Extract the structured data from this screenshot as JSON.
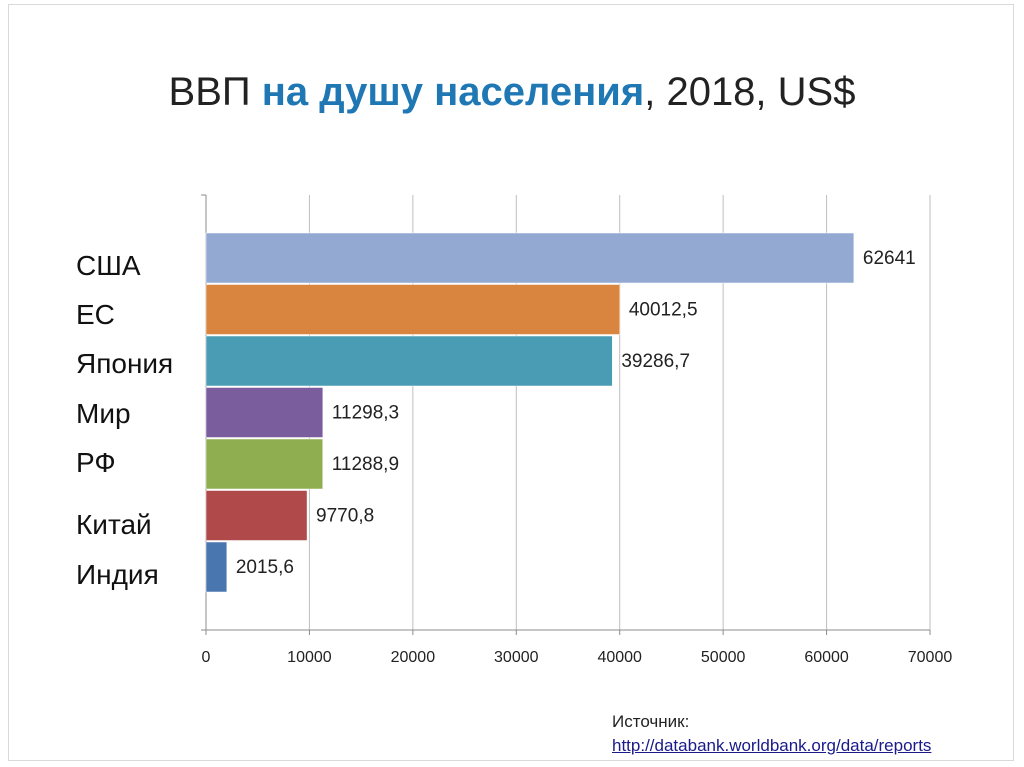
{
  "title": {
    "part1": "ВВП ",
    "part2": "на душу населения",
    "part3": ", 2018, US$"
  },
  "source": {
    "label": "Источник:",
    "link": "http://databank.worldbank.org/data/reports"
  },
  "chart_data": {
    "type": "bar",
    "orientation": "horizontal",
    "title": "ВВП на душу населения, 2018, US$",
    "categories": [
      "США",
      "ЕС",
      "Япония",
      "Мир",
      "РФ",
      "Китай",
      "Индия"
    ],
    "values": [
      62641,
      40012.5,
      39286.7,
      11298.3,
      11288.9,
      9770.8,
      2015.6
    ],
    "value_labels": [
      "62641",
      "40012,5",
      "39286,7",
      "11298,3",
      "11288,9",
      "9770,8",
      "2015,6"
    ],
    "colors": [
      "#94a9d2",
      "#d9843f",
      "#4a9cb4",
      "#7a5d9c",
      "#8fae4f",
      "#b04a4a",
      "#4a76b0"
    ],
    "xlim": [
      0,
      70000
    ],
    "xticks": [
      0,
      10000,
      20000,
      30000,
      40000,
      50000,
      60000,
      70000
    ],
    "grid": true,
    "legend": "none"
  }
}
